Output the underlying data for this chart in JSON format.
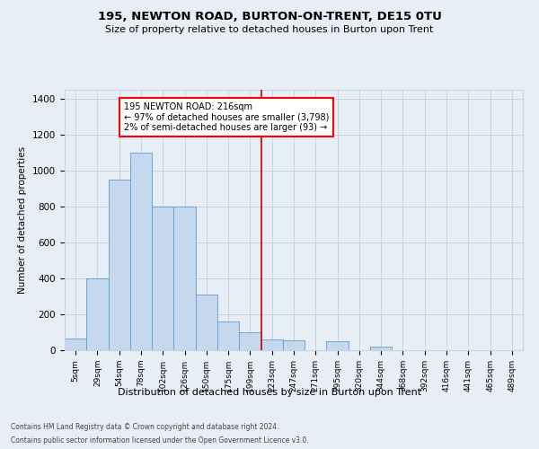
{
  "title": "195, NEWTON ROAD, BURTON-ON-TRENT, DE15 0TU",
  "subtitle": "Size of property relative to detached houses in Burton upon Trent",
  "xlabel": "Distribution of detached houses by size in Burton upon Trent",
  "ylabel": "Number of detached properties",
  "footer1": "Contains HM Land Registry data © Crown copyright and database right 2024.",
  "footer2": "Contains public sector information licensed under the Open Government Licence v3.0.",
  "annotation_line1": "195 NEWTON ROAD: 216sqm",
  "annotation_line2": "← 97% of detached houses are smaller (3,798)",
  "annotation_line3": "2% of semi-detached houses are larger (93) →",
  "bar_categories": [
    "5sqm",
    "29sqm",
    "54sqm",
    "78sqm",
    "102sqm",
    "126sqm",
    "150sqm",
    "175sqm",
    "199sqm",
    "223sqm",
    "247sqm",
    "271sqm",
    "295sqm",
    "320sqm",
    "344sqm",
    "368sqm",
    "392sqm",
    "416sqm",
    "441sqm",
    "465sqm",
    "489sqm"
  ],
  "bar_values": [
    65,
    400,
    950,
    1100,
    800,
    800,
    310,
    160,
    100,
    60,
    55,
    0,
    50,
    0,
    20,
    0,
    0,
    0,
    0,
    0,
    0
  ],
  "bar_color": "#c5d8ed",
  "bar_edge_color": "#5a9fd4",
  "grid_color": "#c8d4e0",
  "background_color": "#e8eef5",
  "vline_color": "#cc0000",
  "vline_pos": 8.5,
  "ylim": [
    0,
    1450
  ],
  "yticks": [
    0,
    200,
    400,
    600,
    800,
    1000,
    1200,
    1400
  ]
}
